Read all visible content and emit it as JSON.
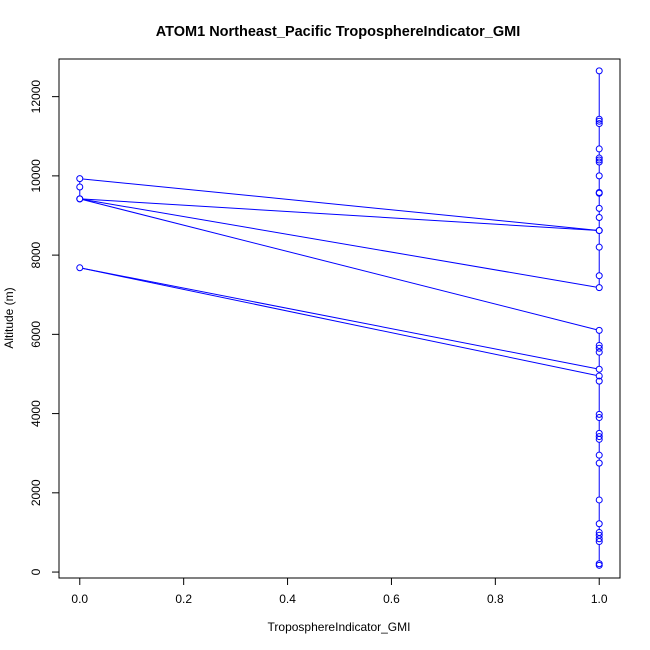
{
  "chart_data": {
    "type": "line",
    "title": "ATOM1 Northeast_Pacific TroposphereIndicator_GMI",
    "xlabel": "TroposphereIndicator_GMI",
    "ylabel": "Altitude (m)",
    "xlim": [
      -0.04,
      1.04
    ],
    "ylim": [
      -150,
      12950
    ],
    "xticks": [
      0,
      0.2,
      0.4,
      0.6,
      0.8,
      1
    ],
    "xtick_labels": [
      "0.0",
      "0.2",
      "0.4",
      "0.6",
      "0.8",
      "1.0"
    ],
    "yticks": [
      0,
      2000,
      4000,
      6000,
      8000,
      10000,
      12000
    ],
    "ytick_labels": [
      "0",
      "2000",
      "4000",
      "6000",
      "8000",
      "10000",
      "12000"
    ],
    "grid": false,
    "legend": "none",
    "series_color": "#0000ff",
    "series": [
      {
        "points": [
          [
            1,
            170
          ],
          [
            1,
            210
          ],
          [
            1,
            770
          ],
          [
            1,
            840
          ],
          [
            1,
            930
          ],
          [
            1,
            1000
          ],
          [
            1,
            1220
          ],
          [
            1,
            1820
          ],
          [
            1,
            2750
          ],
          [
            1,
            2950
          ],
          [
            1,
            3350
          ],
          [
            1,
            3420
          ],
          [
            1,
            3500
          ],
          [
            1,
            3900
          ],
          [
            1,
            3980
          ],
          [
            1,
            4820
          ],
          [
            1,
            4950
          ],
          [
            0,
            7680
          ],
          [
            1,
            5120
          ],
          [
            1,
            5550
          ],
          [
            1,
            5650
          ],
          [
            1,
            5720
          ],
          [
            1,
            6100
          ],
          [
            0,
            9420
          ],
          [
            1,
            7180
          ],
          [
            1,
            7480
          ],
          [
            1,
            8200
          ],
          [
            1,
            8620
          ],
          [
            0,
            9420
          ],
          [
            0,
            9720
          ],
          [
            0,
            9930
          ],
          [
            1,
            8620
          ],
          [
            1,
            8950
          ],
          [
            1,
            9180
          ],
          [
            1,
            9560
          ],
          [
            1,
            9580
          ],
          [
            1,
            10000
          ],
          [
            1,
            10350
          ],
          [
            1,
            10400
          ],
          [
            1,
            10450
          ],
          [
            1,
            10680
          ],
          [
            1,
            11320
          ],
          [
            1,
            11380
          ],
          [
            1,
            11430
          ],
          [
            1,
            12650
          ]
        ]
      }
    ]
  }
}
